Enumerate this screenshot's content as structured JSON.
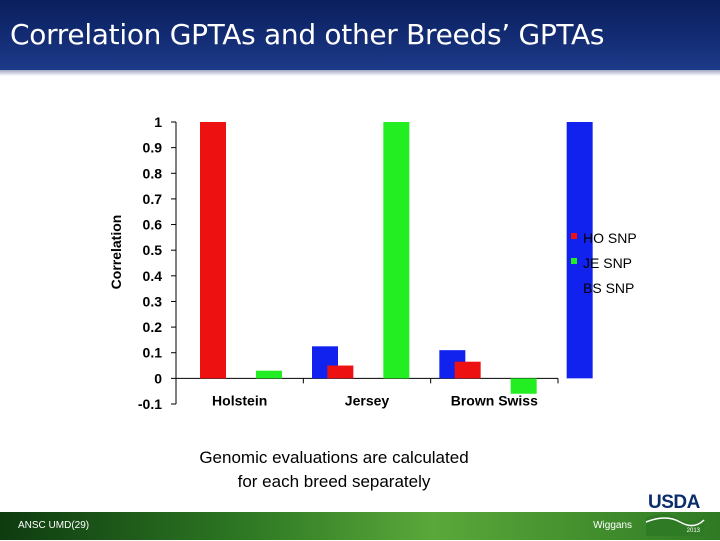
{
  "header": {
    "title": "Correlation GPTAs and other Breeds’ GPTAs"
  },
  "caption": {
    "line1": "Genomic evaluations are calculated",
    "line2": "for each breed separately"
  },
  "footer": {
    "left": "ANSC UMD(29)",
    "right": "Wiggans",
    "logo_text": "USDA",
    "logo_year": "2013"
  },
  "colors": {
    "title_bar": "#132c74",
    "footer": "#2f7a24",
    "ho": "#ee1111",
    "je": "#22ee22",
    "bs": "#1122ee"
  },
  "chart_data": {
    "type": "bar",
    "categories": [
      "Holstein",
      "Jersey",
      "Brown Swiss"
    ],
    "series": [
      {
        "name": "HO SNP",
        "color": "#ee1111",
        "values": [
          1.0,
          0.05,
          0.065
        ]
      },
      {
        "name": "JE SNP",
        "color": "#22ee22",
        "values": [
          0.03,
          1.0,
          -0.06
        ]
      },
      {
        "name": "BS SNP",
        "color": "#1122ee",
        "values": [
          0.125,
          0.11,
          1.0
        ]
      }
    ],
    "ylabel": "Correlation",
    "ylim": [
      -0.1,
      1
    ],
    "yticks": [
      1,
      0.9,
      0.8,
      0.7,
      0.6,
      0.5,
      0.4,
      0.3,
      0.2,
      0.1,
      0,
      -0.1
    ],
    "grid": false,
    "legend": "right"
  }
}
